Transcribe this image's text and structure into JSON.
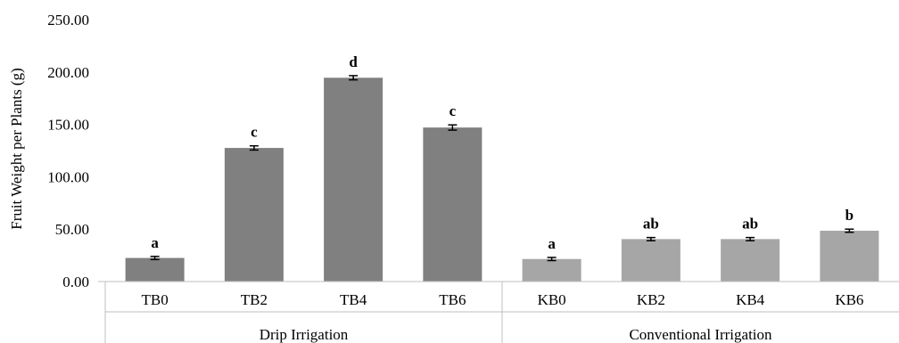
{
  "chart_data": {
    "type": "bar",
    "title": "",
    "xlabel": "",
    "ylabel": "Fruit Weight per Plants (g)",
    "ylim": [
      0,
      250
    ],
    "yticks": [
      "0.00",
      "50.00",
      "100.00",
      "150.00",
      "200.00",
      "250.00"
    ],
    "grid": false,
    "legend": "none",
    "categories": [
      "TB0",
      "TB2",
      "TB4",
      "TB6",
      "KB0",
      "KB2",
      "KB4",
      "KB6"
    ],
    "values": [
      22.5,
      127.5,
      194.5,
      147.0,
      21.5,
      40.5,
      40.5,
      48.5
    ],
    "errors": [
      1.5,
      2.0,
      2.0,
      2.5,
      1.5,
      1.5,
      1.5,
      1.5
    ],
    "significance": [
      "a",
      "c",
      "d",
      "c",
      "a",
      "ab",
      "ab",
      "b"
    ],
    "groups": [
      {
        "label": "Drip Irrigation",
        "start": 0,
        "end": 3,
        "color": "#808080"
      },
      {
        "label": "Conventional Irrigation",
        "start": 4,
        "end": 7,
        "color": "#a6a6a6"
      }
    ]
  }
}
